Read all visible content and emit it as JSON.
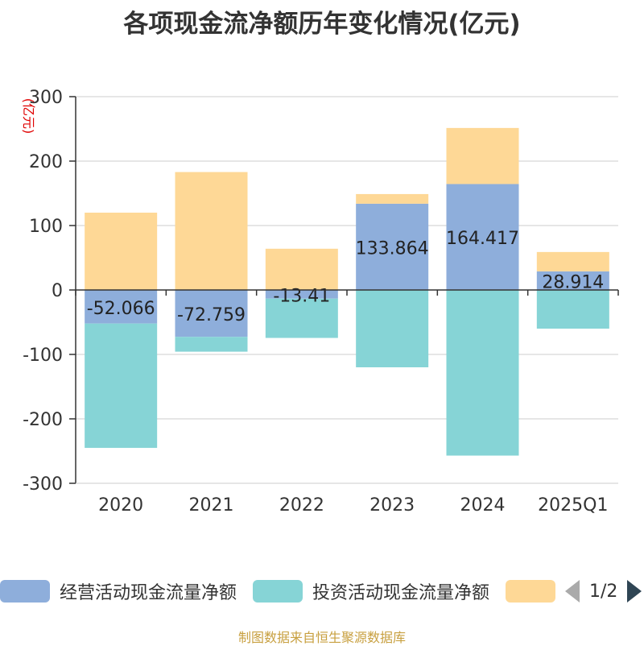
{
  "title": "各项现金流净额历年变化情况(亿元)",
  "source": "制图数据来自恒生聚源数据库",
  "pager": {
    "text": "1/2"
  },
  "chart_data": {
    "type": "bar",
    "stacked": true,
    "title": "各项现金流净额历年变化情况(亿元)",
    "ylabel": "(亿元)",
    "ylim": [
      -300,
      300
    ],
    "yticks": [
      "300",
      "200",
      "100",
      "0",
      "-100",
      "-200",
      "-300"
    ],
    "grid": true,
    "legend_position": "bottom",
    "categories": [
      "2020",
      "2021",
      "2022",
      "2023",
      "2024",
      "2025Q1"
    ],
    "series": [
      {
        "name": "经营活动现金流量净额",
        "color": "#8eaedb",
        "values": [
          -52.066,
          -72.759,
          -13.41,
          133.864,
          164.417,
          28.914
        ],
        "labels": [
          "-52.066",
          "-72.759",
          "-13.41",
          "133.864",
          "164.417",
          "28.914"
        ]
      },
      {
        "name": "投资活动现金流量净额",
        "color": "#86d4d6",
        "values": [
          -193,
          -23,
          -61,
          -120,
          -257,
          -60
        ]
      },
      {
        "name": "",
        "color": "#fed896",
        "values": [
          120,
          183,
          64,
          15,
          87,
          30
        ]
      }
    ]
  }
}
